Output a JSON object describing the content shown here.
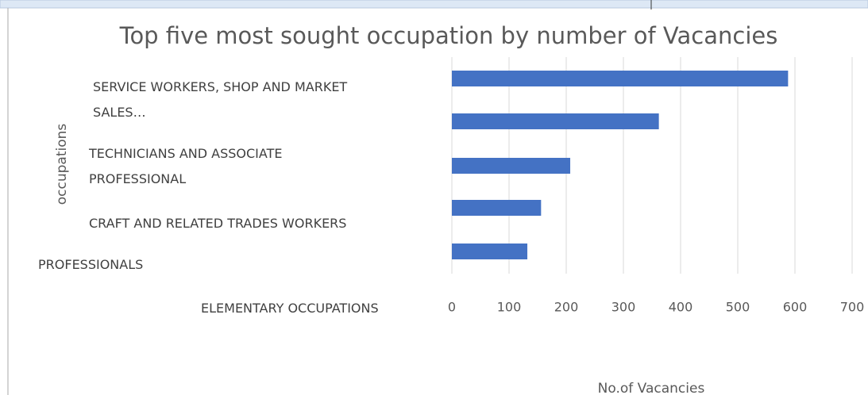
{
  "chart_data": {
    "type": "bar",
    "orientation": "horizontal",
    "title": "Top five most sought occupation by number of Vacancies",
    "x_label": "No.of Vacancies",
    "y_label": "occupations",
    "categories": [
      "SERVICE WORKERS, SHOP AND MARKET SALES…",
      "TECHNICIANS AND ASSOCIATE PROFESSIONAL",
      "CRAFT AND RELATED TRADES WORKERS",
      "PROFESSIONALS",
      "ELEMENTARY OCCUPATIONS"
    ],
    "values": [
      588,
      362,
      207,
      156,
      132
    ],
    "color": "#4472c4",
    "xlim": [
      0,
      700
    ],
    "xticks": [
      0,
      100,
      200,
      300,
      400,
      500,
      600,
      700
    ],
    "grid": true
  }
}
